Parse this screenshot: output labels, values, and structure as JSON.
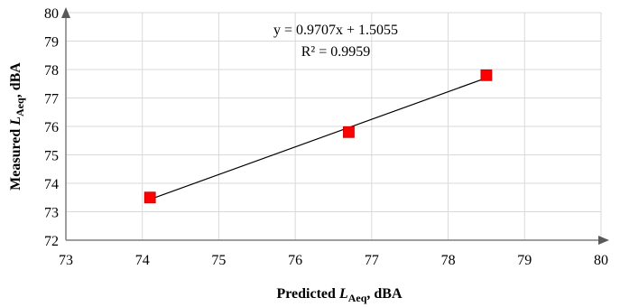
{
  "chart_data": {
    "type": "scatter",
    "title": "",
    "xlabel": {
      "main": "Predicted ",
      "italic": "L",
      "sub": "Aeq",
      "unit": ", dBA"
    },
    "ylabel": {
      "main": "Measured ",
      "italic": "L",
      "sub": "Aeq",
      "unit": ", dBA"
    },
    "xlim": [
      73,
      80
    ],
    "ylim": [
      72,
      80
    ],
    "xticks": [
      73,
      74,
      75,
      76,
      77,
      78,
      79,
      80
    ],
    "yticks": [
      72,
      73,
      74,
      75,
      76,
      77,
      78,
      79,
      80
    ],
    "grid": true,
    "series": [
      {
        "color": "#ff0000",
        "marker": "square",
        "x": [
          74.1,
          76.7,
          78.5
        ],
        "y": [
          73.5,
          75.8,
          77.8
        ]
      }
    ],
    "trendline": {
      "slope": 0.9707,
      "intercept": 1.5055,
      "x_range": [
        74.1,
        78.5
      ],
      "equation": "y = 0.9707x + 1.5055",
      "r_squared": "R² = 0.9959"
    }
  }
}
